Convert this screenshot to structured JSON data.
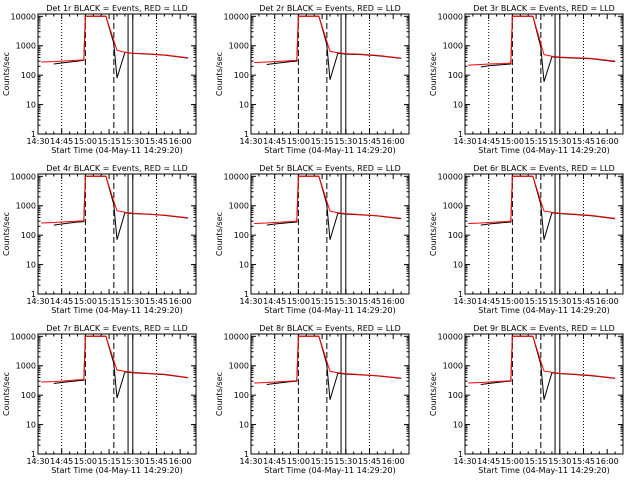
{
  "colors": {
    "events": "#000000",
    "lld": "#ff0000",
    "background": "#ffffff",
    "axis": "#000000"
  },
  "shared_axes": {
    "xlabel": "Start Time (04-May-11 14:29:20)",
    "ylabel": "Counts/sec",
    "y_scale": "log",
    "ylim": [
      1,
      12000
    ],
    "y_tick_labels": [
      "1",
      "10",
      "100",
      "1000",
      "10000"
    ],
    "x_tick_labels": [
      "14:30",
      "14:45",
      "15:00",
      "15:15",
      "15:30",
      "15:45",
      "16:00"
    ]
  },
  "chart_data": [
    {
      "type": "line",
      "title": "Det 1r BLACK = Events, RED = LLD",
      "x": [
        "14:32",
        "14:40",
        "14:45",
        "14:55",
        "14:59",
        "15:00",
        "15:10",
        "15:13",
        "15:18",
        "15:20",
        "15:25",
        "15:30",
        "15:40",
        "15:50",
        "16:05"
      ],
      "series": [
        {
          "name": "Events",
          "values": [
            null,
            240,
            260,
            300,
            320,
            10000,
            10000,
            10000,
            1200,
            80,
            600,
            550,
            520,
            480,
            380
          ]
        },
        {
          "name": "LLD",
          "values": [
            280,
            290,
            300,
            320,
            330,
            10000,
            10000,
            10000,
            1500,
            700,
            600,
            560,
            530,
            490,
            390
          ]
        }
      ],
      "vlines_dashed": [
        "15:00",
        "15:18"
      ],
      "vlines_solid": [
        "15:27",
        "15:30"
      ],
      "vlines_dotted": [
        "14:45",
        "15:45"
      ],
      "grid": false
    },
    {
      "type": "line",
      "title": "Det 2r BLACK = Events, RED = LLD",
      "x": [
        "14:32",
        "14:40",
        "14:45",
        "14:55",
        "14:59",
        "15:00",
        "15:10",
        "15:13",
        "15:18",
        "15:20",
        "15:25",
        "15:30",
        "15:40",
        "15:50",
        "16:05"
      ],
      "series": [
        {
          "name": "Events",
          "values": [
            null,
            230,
            250,
            290,
            300,
            10000,
            10000,
            10000,
            1100,
            70,
            560,
            520,
            500,
            460,
            370
          ]
        },
        {
          "name": "LLD",
          "values": [
            270,
            280,
            290,
            310,
            320,
            10000,
            10000,
            10000,
            1400,
            650,
            580,
            540,
            510,
            470,
            380
          ]
        }
      ],
      "vlines_dashed": [
        "15:00",
        "15:18"
      ],
      "vlines_solid": [
        "15:27",
        "15:30"
      ],
      "vlines_dotted": [
        "14:45",
        "15:45"
      ],
      "grid": false
    },
    {
      "type": "line",
      "title": "Det 3r BLACK = Events, RED = LLD",
      "x": [
        "14:32",
        "14:40",
        "14:45",
        "14:55",
        "14:59",
        "15:00",
        "15:10",
        "15:13",
        "15:18",
        "15:20",
        "15:25",
        "15:30",
        "15:40",
        "15:50",
        "16:05"
      ],
      "series": [
        {
          "name": "Events",
          "values": [
            null,
            190,
            210,
            230,
            240,
            10000,
            10000,
            10000,
            900,
            60,
            420,
            400,
            380,
            360,
            290
          ]
        },
        {
          "name": "LLD",
          "values": [
            220,
            230,
            240,
            250,
            260,
            10000,
            10000,
            10000,
            1200,
            500,
            440,
            410,
            390,
            370,
            300
          ]
        }
      ],
      "vlines_dashed": [
        "15:00",
        "15:18"
      ],
      "vlines_solid": [
        "15:27",
        "15:30"
      ],
      "vlines_dotted": [
        "14:45",
        "15:45"
      ],
      "grid": false
    },
    {
      "type": "line",
      "title": "Det 4r BLACK = Events, RED = LLD",
      "x": [
        "14:32",
        "14:40",
        "14:45",
        "14:55",
        "14:59",
        "15:00",
        "15:10",
        "15:13",
        "15:18",
        "15:20",
        "15:25",
        "15:30",
        "15:40",
        "15:50",
        "16:05"
      ],
      "series": [
        {
          "name": "Events",
          "values": [
            null,
            220,
            240,
            280,
            290,
            10000,
            10000,
            10000,
            1100,
            70,
            580,
            540,
            510,
            470,
            380
          ]
        },
        {
          "name": "LLD",
          "values": [
            260,
            270,
            280,
            300,
            310,
            10000,
            10000,
            10000,
            1400,
            680,
            600,
            560,
            520,
            480,
            390
          ]
        }
      ],
      "vlines_dashed": [
        "15:00",
        "15:18"
      ],
      "vlines_solid": [
        "15:27",
        "15:30"
      ],
      "vlines_dotted": [
        "14:45",
        "15:45"
      ],
      "grid": false
    },
    {
      "type": "line",
      "title": "Det 5r BLACK = Events, RED = LLD",
      "x": [
        "14:32",
        "14:40",
        "14:45",
        "14:55",
        "14:59",
        "15:00",
        "15:10",
        "15:13",
        "15:18",
        "15:20",
        "15:25",
        "15:30",
        "15:40",
        "15:50",
        "16:05"
      ],
      "series": [
        {
          "name": "Events",
          "values": [
            null,
            220,
            240,
            270,
            280,
            10000,
            10000,
            10000,
            1100,
            70,
            560,
            520,
            490,
            450,
            360
          ]
        },
        {
          "name": "LLD",
          "values": [
            250,
            260,
            270,
            290,
            300,
            10000,
            10000,
            10000,
            1400,
            660,
            580,
            540,
            500,
            460,
            370
          ]
        }
      ],
      "vlines_dashed": [
        "15:00",
        "15:18"
      ],
      "vlines_solid": [
        "15:27",
        "15:30"
      ],
      "vlines_dotted": [
        "14:45",
        "15:45"
      ],
      "grid": false
    },
    {
      "type": "line",
      "title": "Det 6r BLACK = Events, RED = LLD",
      "x": [
        "14:32",
        "14:40",
        "14:45",
        "14:55",
        "14:59",
        "15:00",
        "15:10",
        "15:13",
        "15:18",
        "15:20",
        "15:25",
        "15:30",
        "15:40",
        "15:50",
        "16:05"
      ],
      "series": [
        {
          "name": "Events",
          "values": [
            null,
            220,
            240,
            270,
            280,
            10000,
            10000,
            10000,
            1100,
            70,
            580,
            540,
            500,
            460,
            360
          ]
        },
        {
          "name": "LLD",
          "values": [
            250,
            260,
            270,
            290,
            300,
            10000,
            10000,
            10000,
            1400,
            660,
            600,
            560,
            510,
            470,
            370
          ]
        }
      ],
      "vlines_dashed": [
        "15:00",
        "15:18"
      ],
      "vlines_solid": [
        "15:27",
        "15:30"
      ],
      "vlines_dotted": [
        "14:45",
        "15:45"
      ],
      "grid": false
    },
    {
      "type": "line",
      "title": "Det 7r BLACK = Events, RED = LLD",
      "x": [
        "14:32",
        "14:40",
        "14:45",
        "14:55",
        "14:59",
        "15:00",
        "15:10",
        "15:13",
        "15:18",
        "15:20",
        "15:25",
        "15:30",
        "15:40",
        "15:50",
        "16:05"
      ],
      "series": [
        {
          "name": "Events",
          "values": [
            null,
            250,
            270,
            310,
            320,
            10000,
            10000,
            10000,
            1200,
            80,
            620,
            580,
            540,
            500,
            390
          ]
        },
        {
          "name": "LLD",
          "values": [
            280,
            290,
            300,
            330,
            340,
            10000,
            10000,
            10000,
            1500,
            720,
            640,
            600,
            550,
            510,
            400
          ]
        }
      ],
      "vlines_dashed": [
        "15:00",
        "15:18"
      ],
      "vlines_solid": [
        "15:27",
        "15:30"
      ],
      "vlines_dotted": [
        "14:45",
        "15:45"
      ],
      "grid": false
    },
    {
      "type": "line",
      "title": "Det 8r BLACK = Events, RED = LLD",
      "x": [
        "14:32",
        "14:40",
        "14:45",
        "14:55",
        "14:59",
        "15:00",
        "15:10",
        "15:13",
        "15:18",
        "15:20",
        "15:25",
        "15:30",
        "15:40",
        "15:50",
        "16:05"
      ],
      "series": [
        {
          "name": "Events",
          "values": [
            null,
            230,
            250,
            290,
            300,
            10000,
            10000,
            10000,
            1100,
            70,
            560,
            520,
            490,
            450,
            370
          ]
        },
        {
          "name": "LLD",
          "values": [
            260,
            270,
            280,
            300,
            310,
            10000,
            10000,
            10000,
            1400,
            650,
            580,
            540,
            500,
            460,
            380
          ]
        }
      ],
      "vlines_dashed": [
        "15:00",
        "15:18"
      ],
      "vlines_solid": [
        "15:27",
        "15:30"
      ],
      "vlines_dotted": [
        "14:45",
        "15:45"
      ],
      "grid": false
    },
    {
      "type": "line",
      "title": "Det 9r BLACK = Events, RED = LLD",
      "x": [
        "14:32",
        "14:40",
        "14:45",
        "14:55",
        "14:59",
        "15:00",
        "15:10",
        "15:13",
        "15:18",
        "15:20",
        "15:25",
        "15:30",
        "15:40",
        "15:50",
        "16:05"
      ],
      "series": [
        {
          "name": "Events",
          "values": [
            null,
            230,
            250,
            290,
            300,
            10000,
            10000,
            10000,
            1100,
            70,
            580,
            540,
            500,
            460,
            370
          ]
        },
        {
          "name": "LLD",
          "values": [
            260,
            270,
            280,
            300,
            310,
            10000,
            10000,
            10000,
            1400,
            660,
            600,
            550,
            510,
            470,
            380
          ]
        }
      ],
      "vlines_dashed": [
        "15:00",
        "15:18"
      ],
      "vlines_solid": [
        "15:27",
        "15:30"
      ],
      "vlines_dotted": [
        "14:45",
        "15:45"
      ],
      "grid": false
    }
  ]
}
